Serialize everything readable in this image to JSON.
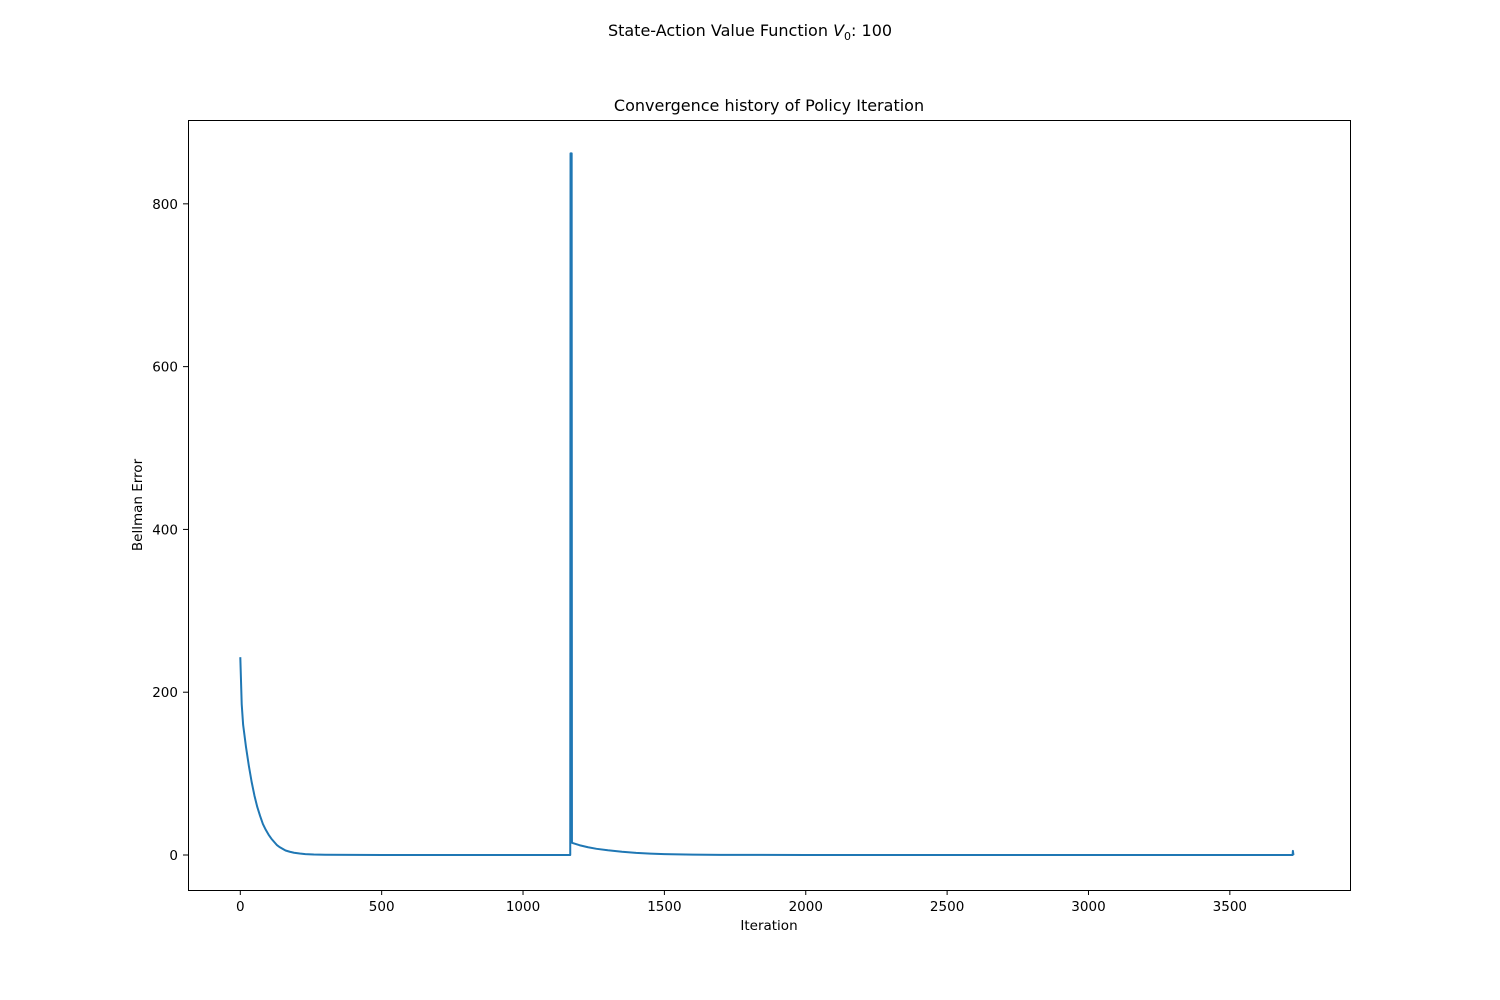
{
  "figure": {
    "suptitle_prefix": "State-Action Value Function ",
    "suptitle_var": "V",
    "suptitle_sub": "0",
    "suptitle_suffix": ": 100"
  },
  "chart_data": {
    "type": "line",
    "title": "Convergence history of Policy Iteration",
    "xlabel": "Iteration",
    "ylabel": "Bellman Error",
    "xlim": [
      -185,
      3925
    ],
    "ylim": [
      -43,
      903
    ],
    "grid": false,
    "xticks": [
      0,
      500,
      1000,
      1500,
      2000,
      2500,
      3000,
      3500
    ],
    "yticks": [
      0,
      200,
      400,
      600,
      800
    ],
    "series": [
      {
        "color": "#1f77b4",
        "points": [
          [
            0,
            243
          ],
          [
            5,
            185
          ],
          [
            10,
            160
          ],
          [
            20,
            133
          ],
          [
            30,
            110
          ],
          [
            40,
            90
          ],
          [
            50,
            73
          ],
          [
            60,
            59
          ],
          [
            70,
            48
          ],
          [
            80,
            38
          ],
          [
            90,
            31
          ],
          [
            100,
            25
          ],
          [
            110,
            20
          ],
          [
            120,
            16
          ],
          [
            130,
            12
          ],
          [
            140,
            9.5
          ],
          [
            150,
            7.5
          ],
          [
            160,
            5.5
          ],
          [
            175,
            4
          ],
          [
            190,
            2.8
          ],
          [
            210,
            1.8
          ],
          [
            230,
            1.1
          ],
          [
            260,
            0.6
          ],
          [
            300,
            0.3
          ],
          [
            400,
            0.1
          ],
          [
            600,
            0.02
          ],
          [
            1000,
            0
          ],
          [
            1167,
            0
          ],
          [
            1168,
            862
          ],
          [
            1172,
            862
          ],
          [
            1173,
            15
          ],
          [
            1200,
            12
          ],
          [
            1230,
            9.5
          ],
          [
            1260,
            7.6
          ],
          [
            1300,
            5.8
          ],
          [
            1350,
            4
          ],
          [
            1400,
            2.6
          ],
          [
            1450,
            1.7
          ],
          [
            1500,
            1.1
          ],
          [
            1600,
            0.5
          ],
          [
            1700,
            0.2
          ],
          [
            1800,
            0.1
          ],
          [
            2000,
            0.02
          ],
          [
            2500,
            0
          ],
          [
            3000,
            0
          ],
          [
            3500,
            0
          ],
          [
            3722,
            0
          ],
          [
            3723,
            5
          ],
          [
            3725,
            0
          ]
        ]
      }
    ]
  }
}
